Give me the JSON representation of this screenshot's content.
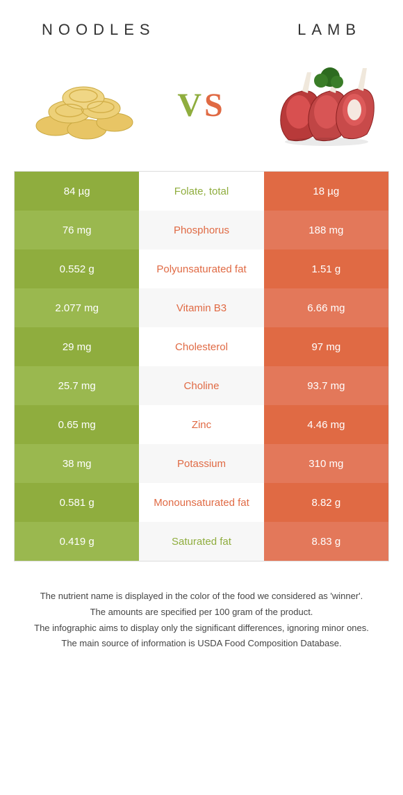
{
  "header": {
    "left": "NOODLES",
    "right": "LAMB"
  },
  "vs": {
    "v": "V",
    "s": "S"
  },
  "colors": {
    "green": "#8fad3e",
    "orange": "#e06a44",
    "green_light": "#9ab84f",
    "orange_light": "#e3785a"
  },
  "rows": [
    {
      "left": "84 µg",
      "mid": "Folate, total",
      "right": "18 µg",
      "winner": "green"
    },
    {
      "left": "76 mg",
      "mid": "Phosphorus",
      "right": "188 mg",
      "winner": "orange"
    },
    {
      "left": "0.552 g",
      "mid": "Polyunsaturated fat",
      "right": "1.51 g",
      "winner": "orange"
    },
    {
      "left": "2.077 mg",
      "mid": "Vitamin B3",
      "right": "6.66 mg",
      "winner": "orange"
    },
    {
      "left": "29 mg",
      "mid": "Cholesterol",
      "right": "97 mg",
      "winner": "orange"
    },
    {
      "left": "25.7 mg",
      "mid": "Choline",
      "right": "93.7 mg",
      "winner": "orange"
    },
    {
      "left": "0.65 mg",
      "mid": "Zinc",
      "right": "4.46 mg",
      "winner": "orange"
    },
    {
      "left": "38 mg",
      "mid": "Potassium",
      "right": "310 mg",
      "winner": "orange"
    },
    {
      "left": "0.581 g",
      "mid": "Monounsaturated fat",
      "right": "8.82 g",
      "winner": "orange"
    },
    {
      "left": "0.419 g",
      "mid": "Saturated fat",
      "right": "8.83 g",
      "winner": "green"
    }
  ],
  "footer": {
    "l1": "The nutrient name is displayed in the color of the food we considered as 'winner'.",
    "l2": "The amounts are specified per 100 gram of the product.",
    "l3": "The infographic aims to display only the significant differences, ignoring minor ones.",
    "l4": "The main source of information is USDA Food Composition Database."
  }
}
